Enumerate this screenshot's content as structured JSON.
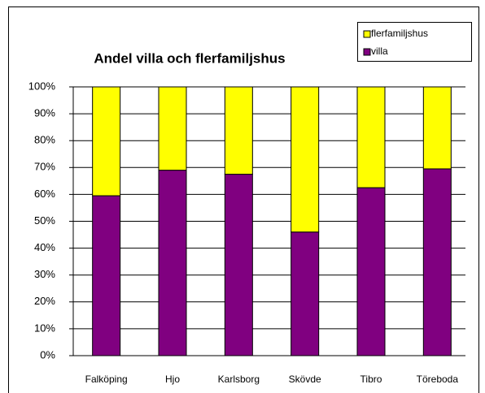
{
  "chart_data": {
    "type": "stacked_bar",
    "title": "Andel villa och flerfamiljshus",
    "categories": [
      "Falköping",
      "Hjo",
      "Karlsborg",
      "Skövde",
      "Tibro",
      "Töreboda"
    ],
    "series": [
      {
        "name": "villa",
        "color": "#800080",
        "values": [
          59.5,
          69,
          67.5,
          46,
          62.5,
          69.5
        ]
      },
      {
        "name": "flerfamiljshus",
        "color": "#ffff00",
        "values": [
          40.5,
          31,
          32.5,
          54,
          37.5,
          30.5
        ]
      }
    ],
    "ylim": [
      0,
      100
    ],
    "yticks": [
      {
        "value": 0,
        "label": "0%"
      },
      {
        "value": 10,
        "label": "10%"
      },
      {
        "value": 20,
        "label": "20%"
      },
      {
        "value": 30,
        "label": "30%"
      },
      {
        "value": 40,
        "label": "40%"
      },
      {
        "value": 50,
        "label": "50%"
      },
      {
        "value": 60,
        "label": "60%"
      },
      {
        "value": 70,
        "label": "70%"
      },
      {
        "value": 80,
        "label": "80%"
      },
      {
        "value": 90,
        "label": "90%"
      },
      {
        "value": 100,
        "label": "100%"
      }
    ],
    "grid": true,
    "legend": "top-right"
  }
}
